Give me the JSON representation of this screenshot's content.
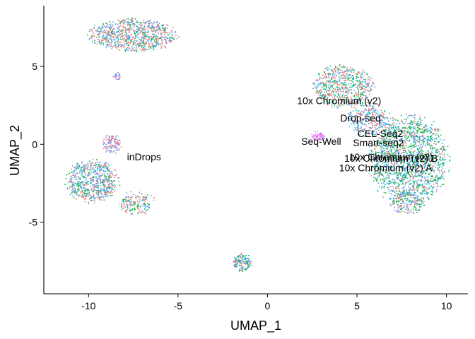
{
  "chart_data": {
    "type": "scatter",
    "xlabel": "UMAP_1",
    "ylabel": "UMAP_2",
    "xlim": [
      -12.5,
      11.2
    ],
    "ylim": [
      -9.6,
      8.9
    ],
    "xticks": [
      -10,
      -5,
      0,
      5,
      10
    ],
    "yticks": [
      -5,
      0,
      5
    ],
    "xtick_labels": [
      "-10",
      "-5",
      "0",
      "5",
      "10"
    ],
    "ytick_labels": [
      "-5",
      "0",
      "5"
    ],
    "grid": false,
    "legend": "none",
    "point_colors": [
      "#F8766D",
      "#619CFF",
      "#00BA38",
      "#00BFC4",
      "#C77CFF",
      "#B79F00",
      "#F564E3"
    ],
    "clusters": [
      {
        "cx": -7.5,
        "cy": 7.0,
        "rx": 2.3,
        "ry": 1.0,
        "n": 900,
        "palette": [
          0,
          0,
          1,
          1,
          0,
          2,
          3
        ]
      },
      {
        "cx": -8.4,
        "cy": 4.4,
        "rx": 0.2,
        "ry": 0.3,
        "n": 25,
        "palette": [
          0,
          1
        ]
      },
      {
        "cx": -9.8,
        "cy": -2.4,
        "rx": 1.4,
        "ry": 1.3,
        "n": 700,
        "palette": [
          1,
          0,
          1,
          0,
          2,
          3
        ]
      },
      {
        "cx": -8.7,
        "cy": 0.0,
        "rx": 0.5,
        "ry": 0.6,
        "n": 120,
        "palette": [
          0,
          1
        ]
      },
      {
        "cx": -7.3,
        "cy": -3.8,
        "rx": 1.0,
        "ry": 0.7,
        "n": 160,
        "palette": [
          1,
          0,
          2
        ]
      },
      {
        "cx": 4.2,
        "cy": 3.7,
        "rx": 1.6,
        "ry": 1.3,
        "n": 650,
        "palette": [
          0,
          0,
          1,
          3,
          2
        ]
      },
      {
        "cx": 7.9,
        "cy": -1.0,
        "rx": 2.1,
        "ry": 2.7,
        "n": 1700,
        "palette": [
          1,
          0,
          2,
          3,
          1,
          2
        ]
      },
      {
        "cx": 5.6,
        "cy": 1.6,
        "rx": 1.2,
        "ry": 1.0,
        "n": 300,
        "palette": [
          0,
          1,
          3
        ]
      },
      {
        "cx": 7.8,
        "cy": -3.8,
        "rx": 0.9,
        "ry": 0.7,
        "n": 180,
        "palette": [
          0,
          2,
          1
        ]
      },
      {
        "cx": 2.8,
        "cy": 0.5,
        "rx": 0.4,
        "ry": 0.3,
        "n": 60,
        "palette": [
          4,
          6
        ]
      },
      {
        "cx": -1.4,
        "cy": -7.6,
        "rx": 0.5,
        "ry": 0.55,
        "n": 160,
        "palette": [
          1,
          2,
          3,
          0
        ]
      }
    ],
    "annotations": [
      {
        "text": "10x Chromium (v2)",
        "x": 4.0,
        "y": 2.8
      },
      {
        "text": "Drop-seq",
        "x": 5.2,
        "y": 1.7
      },
      {
        "text": "CEL-Seq2",
        "x": 6.3,
        "y": 0.7
      },
      {
        "text": "Seq-Well",
        "x": 3.0,
        "y": 0.2
      },
      {
        "text": "Smart-seq2",
        "x": 6.2,
        "y": 0.1
      },
      {
        "text": "10x Chromium (v2)",
        "x": 6.9,
        "y": -0.8
      },
      {
        "text": "10x Chromium (v2) B",
        "x": 6.9,
        "y": -0.9
      },
      {
        "text": "10x Chromium (v2) A",
        "x": 6.6,
        "y": -1.5
      },
      {
        "text": "inDrops",
        "x": -6.9,
        "y": -0.8
      }
    ]
  }
}
